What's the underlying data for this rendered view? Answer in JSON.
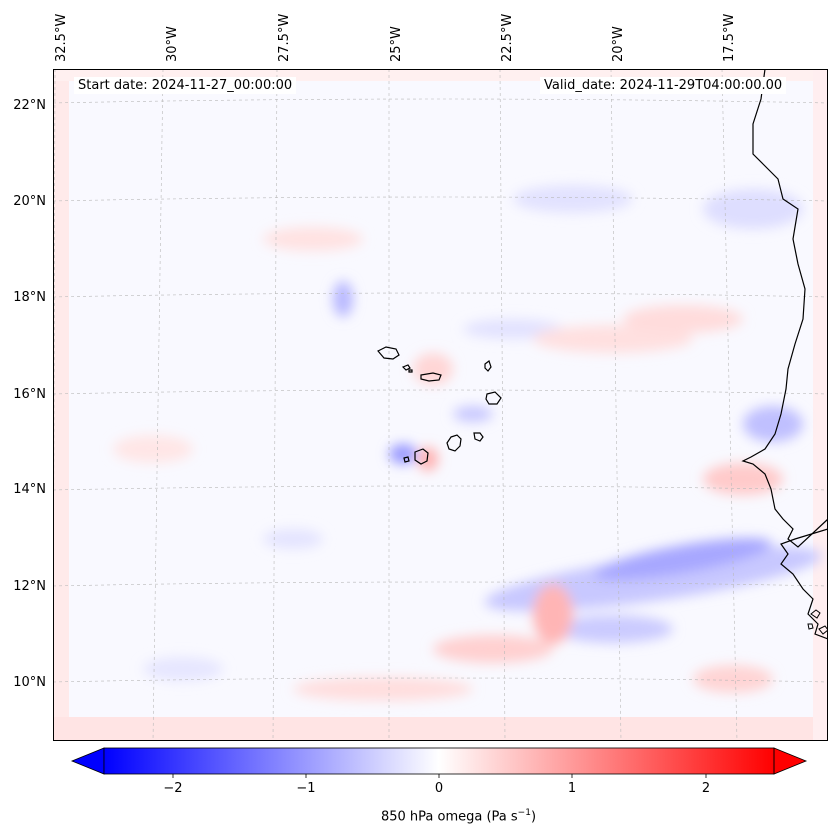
{
  "map": {
    "start_date": "Start date: 2024-11-27_00:00:00",
    "valid_date": "Valid_date: 2024-11-29T04:00:00.00",
    "lon_labels": [
      "32.5°W",
      "30°W",
      "27.5°W",
      "25°W",
      "22.5°W",
      "20°W",
      "17.5°W"
    ],
    "lat_labels": [
      "22°N",
      "20°N",
      "18°N",
      "16°N",
      "14°N",
      "12°N",
      "10°N"
    ],
    "extent": {
      "lon_min": -33.0,
      "lon_max": -15.5,
      "lat_min": 8.9,
      "lat_max": 22.8
    },
    "gridlines": true,
    "field": "850 hPa omega",
    "colormap": "bwr",
    "colors": {
      "negative": "#0000ff",
      "zero": "#ffffff",
      "positive": "#ff0000",
      "coast": "#000000",
      "grid": "#b0b0b0"
    }
  },
  "colorbar": {
    "ticks": [
      "−2",
      "−1",
      "0",
      "1",
      "2"
    ],
    "tick_values": [
      -2,
      -1,
      0,
      1,
      2
    ],
    "vmin": -2.5,
    "vmax": 2.5,
    "extend": "both",
    "label_main": "850 hPa omega (Pa s",
    "label_sup": "−1",
    "label_end": ")"
  }
}
